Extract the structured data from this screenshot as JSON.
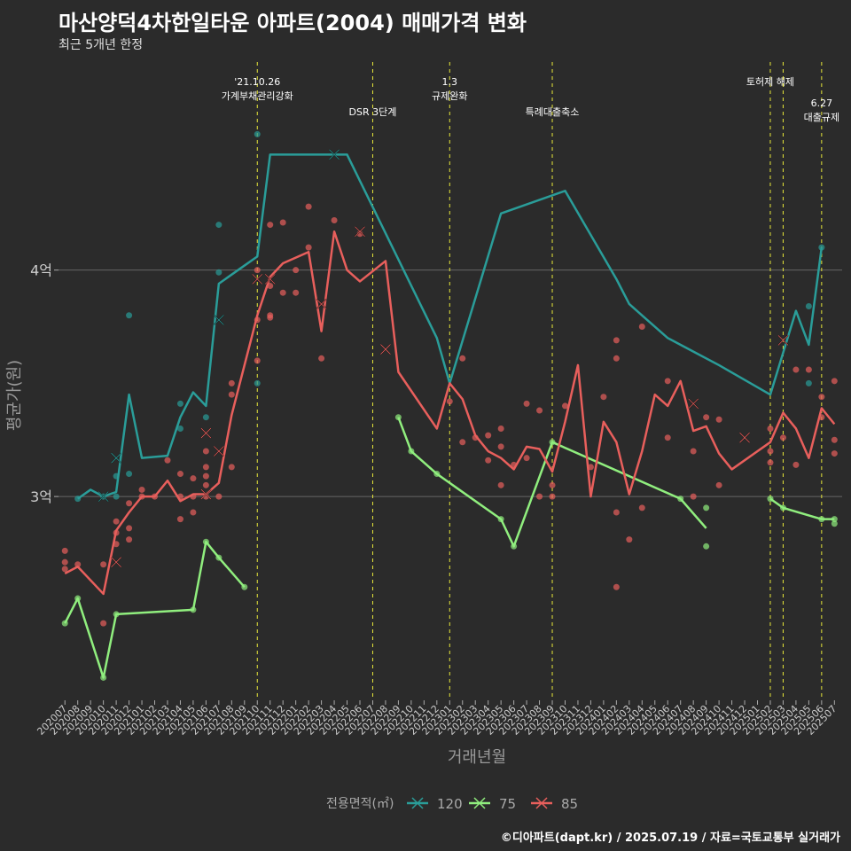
{
  "title": "마산양덕4차한일타운 아파트(2004) 매매가격 변화",
  "subtitle": "최근 5개년 한정",
  "caption": "©디아파트(dapt.kr) / 2025.07.19 / 자료=국토교통부 실거래가",
  "chart_data": {
    "type": "line",
    "xlabel": "거래년월",
    "ylabel": "평균가(원)",
    "ylim": [
      2.1,
      4.95
    ],
    "yticks": [
      {
        "value": 3,
        "label": "3억"
      },
      {
        "value": 4,
        "label": "4억"
      }
    ],
    "categories": [
      "202007",
      "202008",
      "202009",
      "202010",
      "202011",
      "202012",
      "202101",
      "202102",
      "202103",
      "202104",
      "202105",
      "202106",
      "202107",
      "202108",
      "202109",
      "202110",
      "202111",
      "202112",
      "202201",
      "202202",
      "202203",
      "202204",
      "202205",
      "202206",
      "202207",
      "202208",
      "202209",
      "202210",
      "202211",
      "202212",
      "202301",
      "202302",
      "202303",
      "202304",
      "202305",
      "202306",
      "202307",
      "202308",
      "202309",
      "202310",
      "202311",
      "202312",
      "202401",
      "202402",
      "202403",
      "202404",
      "202405",
      "202406",
      "202407",
      "202408",
      "202409",
      "202410",
      "202411",
      "202412",
      "202501",
      "202502",
      "202503",
      "202504",
      "202505",
      "202506",
      "202507"
    ],
    "legend": {
      "title": "전용면적(㎡)",
      "position": "bottom"
    },
    "grid": true,
    "events": [
      {
        "x": "202110",
        "labels": [
          "'21.10.26",
          "가계부채관리강화"
        ],
        "row": 0
      },
      {
        "x": "202207",
        "labels": [
          "DSR 3단계"
        ],
        "row": 1
      },
      {
        "x": "202301",
        "labels": [
          "1.3",
          "규제완화"
        ],
        "row": 0
      },
      {
        "x": "202309",
        "labels": [
          "특례대출축소"
        ],
        "row": 1
      },
      {
        "x": "202502",
        "labels": [
          "토허제 해제"
        ],
        "row": 0
      },
      {
        "x": "202503",
        "labels": [],
        "row": 0
      },
      {
        "x": "202506",
        "labels": [
          "6.27",
          "대출규제"
        ],
        "row": 0.7
      }
    ],
    "series": [
      {
        "name": "120",
        "color": "#2a9d99",
        "line": [
          [
            "202008",
            2.99
          ],
          [
            "202009",
            3.03
          ],
          [
            "202010",
            3.0
          ],
          [
            "202011",
            3.02
          ],
          [
            "202012",
            3.45
          ],
          [
            "202101",
            3.17
          ],
          [
            "202103",
            3.18
          ],
          [
            "202104",
            3.35
          ],
          [
            "202105",
            3.46
          ],
          [
            "202106",
            3.4
          ],
          [
            "202107",
            3.94
          ],
          [
            "202109",
            4.02
          ],
          [
            "202110",
            4.06
          ],
          [
            "202111",
            4.51
          ],
          [
            "202205",
            4.51
          ],
          [
            "202301",
            3.5
          ],
          [
            "202212",
            3.7
          ],
          [
            "202305",
            4.25
          ],
          [
            "202310",
            4.35
          ],
          [
            "202402",
            3.96
          ],
          [
            "202403",
            3.85
          ],
          [
            "202404",
            3.8
          ],
          [
            "202406",
            3.7
          ],
          [
            "202408",
            3.64
          ],
          [
            "202410",
            3.58
          ],
          [
            "202502",
            3.45
          ],
          [
            "202504",
            3.82
          ],
          [
            "202505",
            3.67
          ],
          [
            "202506",
            4.1
          ]
        ],
        "points": [
          [
            "202008",
            2.99
          ],
          [
            "202010",
            3.0
          ],
          [
            "202011",
            3.0
          ],
          [
            "202011",
            3.09
          ],
          [
            "202012",
            3.8
          ],
          [
            "202012",
            3.1
          ],
          [
            "202104",
            3.3
          ],
          [
            "202104",
            3.41
          ],
          [
            "202106",
            3.35
          ],
          [
            "202107",
            4.2
          ],
          [
            "202107",
            3.99
          ],
          [
            "202110",
            4.6
          ],
          [
            "202110",
            3.5
          ],
          [
            "202505",
            3.5
          ],
          [
            "202505",
            3.84
          ],
          [
            "202506",
            4.1
          ]
        ],
        "crosses": [
          [
            "202011",
            3.17
          ],
          [
            "202010",
            3.0
          ],
          [
            "202107",
            3.78
          ],
          [
            "202204",
            4.51
          ]
        ]
      },
      {
        "name": "75",
        "color": "#90ee7e",
        "line": [
          [
            "202007",
            2.44
          ],
          [
            "202008",
            2.55
          ],
          [
            "202010",
            2.2
          ],
          [
            "202011",
            2.48
          ],
          [
            "202105",
            2.5
          ],
          [
            "202106",
            2.8
          ],
          [
            "202107",
            2.73
          ],
          [
            "202109",
            2.6
          ]
        ],
        "line2": [
          [
            "202209",
            3.35
          ],
          [
            "202210",
            3.2
          ],
          [
            "202212",
            3.1
          ],
          [
            "202305",
            2.9
          ],
          [
            "202306",
            2.78
          ],
          [
            "202309",
            3.24
          ],
          [
            "202407",
            2.99
          ],
          [
            "202409",
            2.86
          ]
        ],
        "line3": [
          [
            "202502",
            2.99
          ],
          [
            "202503",
            2.95
          ],
          [
            "202506",
            2.9
          ],
          [
            "202507",
            2.9
          ]
        ],
        "points": [
          [
            "202007",
            2.44
          ],
          [
            "202008",
            2.55
          ],
          [
            "202010",
            2.2
          ],
          [
            "202011",
            2.48
          ],
          [
            "202105",
            2.5
          ],
          [
            "202106",
            2.8
          ],
          [
            "202107",
            2.73
          ],
          [
            "202109",
            2.6
          ],
          [
            "202209",
            3.35
          ],
          [
            "202210",
            3.2
          ],
          [
            "202212",
            3.1
          ],
          [
            "202305",
            2.9
          ],
          [
            "202306",
            2.78
          ],
          [
            "202309",
            3.24
          ],
          [
            "202407",
            2.99
          ],
          [
            "202409",
            2.95
          ],
          [
            "202409",
            2.78
          ],
          [
            "202502",
            2.99
          ],
          [
            "202503",
            2.95
          ],
          [
            "202506",
            2.9
          ],
          [
            "202507",
            2.9
          ],
          [
            "202507",
            2.88
          ]
        ],
        "crosses": []
      },
      {
        "name": "85",
        "color": "#e85f5c",
        "line": [
          [
            "202007",
            2.66
          ],
          [
            "202008",
            2.69
          ],
          [
            "202010",
            2.57
          ],
          [
            "202011",
            2.85
          ],
          [
            "202012",
            2.93
          ],
          [
            "202101",
            3.0
          ],
          [
            "202102",
            3.0
          ],
          [
            "202103",
            3.07
          ],
          [
            "202104",
            2.98
          ],
          [
            "202105",
            3.01
          ],
          [
            "202106",
            3.01
          ],
          [
            "202107",
            3.06
          ],
          [
            "202108",
            3.36
          ],
          [
            "202110",
            3.8
          ],
          [
            "202111",
            3.97
          ],
          [
            "202112",
            4.03
          ],
          [
            "202202",
            4.08
          ],
          [
            "202203",
            3.73
          ],
          [
            "202204",
            4.17
          ],
          [
            "202205",
            4.0
          ],
          [
            "202206",
            3.95
          ],
          [
            "202208",
            4.04
          ],
          [
            "202209",
            3.55
          ],
          [
            "202212",
            3.3
          ],
          [
            "202301",
            3.5
          ],
          [
            "202302",
            3.43
          ],
          [
            "202303",
            3.27
          ],
          [
            "202304",
            3.2
          ],
          [
            "202305",
            3.17
          ],
          [
            "202306",
            3.12
          ],
          [
            "202307",
            3.22
          ],
          [
            "202308",
            3.21
          ],
          [
            "202309",
            3.11
          ],
          [
            "202310",
            3.33
          ],
          [
            "202311",
            3.58
          ],
          [
            "202312",
            3.0
          ],
          [
            "202401",
            3.33
          ],
          [
            "202402",
            3.24
          ],
          [
            "202403",
            3.01
          ],
          [
            "202404",
            3.2
          ],
          [
            "202405",
            3.45
          ],
          [
            "202406",
            3.4
          ],
          [
            "202407",
            3.51
          ],
          [
            "202408",
            3.29
          ],
          [
            "202409",
            3.31
          ],
          [
            "202410",
            3.19
          ],
          [
            "202411",
            3.12
          ],
          [
            "202502",
            3.24
          ],
          [
            "202503",
            3.37
          ],
          [
            "202504",
            3.3
          ],
          [
            "202505",
            3.17
          ],
          [
            "202506",
            3.39
          ],
          [
            "202507",
            3.32
          ]
        ],
        "points": [
          [
            "202007",
            2.76
          ],
          [
            "202007",
            2.71
          ],
          [
            "202007",
            2.68
          ],
          [
            "202008",
            2.7
          ],
          [
            "202010",
            2.7
          ],
          [
            "202010",
            2.44
          ],
          [
            "202011",
            2.89
          ],
          [
            "202011",
            2.84
          ],
          [
            "202011",
            2.79
          ],
          [
            "202012",
            2.86
          ],
          [
            "202012",
            2.81
          ],
          [
            "202012",
            2.97
          ],
          [
            "202101",
            3.0
          ],
          [
            "202101",
            3.03
          ],
          [
            "202102",
            3.0
          ],
          [
            "202103",
            3.16
          ],
          [
            "202104",
            2.9
          ],
          [
            "202104",
            3.0
          ],
          [
            "202104",
            3.1
          ],
          [
            "202105",
            3.08
          ],
          [
            "202105",
            2.93
          ],
          [
            "202105",
            3.0
          ],
          [
            "202106",
            3.13
          ],
          [
            "202106",
            3.09
          ],
          [
            "202106",
            3.05
          ],
          [
            "202106",
            3.2
          ],
          [
            "202106",
            3.0
          ],
          [
            "202107",
            3.0
          ],
          [
            "202108",
            3.5
          ],
          [
            "202108",
            3.45
          ],
          [
            "202108",
            3.13
          ],
          [
            "202110",
            3.6
          ],
          [
            "202110",
            3.78
          ],
          [
            "202110",
            4.0
          ],
          [
            "202111",
            4.2
          ],
          [
            "202111",
            3.8
          ],
          [
            "202111",
            3.79
          ],
          [
            "202111",
            3.93
          ],
          [
            "202112",
            4.21
          ],
          [
            "202112",
            3.9
          ],
          [
            "202201",
            4.0
          ],
          [
            "202201",
            3.9
          ],
          [
            "202202",
            4.28
          ],
          [
            "202202",
            4.1
          ],
          [
            "202203",
            3.61
          ],
          [
            "202204",
            4.22
          ],
          [
            "202206",
            4.16
          ],
          [
            "202301",
            3.42
          ],
          [
            "202302",
            3.24
          ],
          [
            "202302",
            3.61
          ],
          [
            "202303",
            3.26
          ],
          [
            "202304",
            3.16
          ],
          [
            "202304",
            3.27
          ],
          [
            "202305",
            3.05
          ],
          [
            "202305",
            3.3
          ],
          [
            "202305",
            3.22
          ],
          [
            "202306",
            3.14
          ],
          [
            "202307",
            3.41
          ],
          [
            "202307",
            3.17
          ],
          [
            "202308",
            3.38
          ],
          [
            "202308",
            3.0
          ],
          [
            "202309",
            3.05
          ],
          [
            "202309",
            3.0
          ],
          [
            "202310",
            3.4
          ],
          [
            "202312",
            3.13
          ],
          [
            "202401",
            3.44
          ],
          [
            "202402",
            3.69
          ],
          [
            "202402",
            3.61
          ],
          [
            "202402",
            2.93
          ],
          [
            "202402",
            2.6
          ],
          [
            "202403",
            2.81
          ],
          [
            "202404",
            2.95
          ],
          [
            "202404",
            3.75
          ],
          [
            "202406",
            3.51
          ],
          [
            "202406",
            3.26
          ],
          [
            "202408",
            3.2
          ],
          [
            "202408",
            3.0
          ],
          [
            "202409",
            3.35
          ],
          [
            "202410",
            3.34
          ],
          [
            "202410",
            3.05
          ],
          [
            "202502",
            3.3
          ],
          [
            "202502",
            3.15
          ],
          [
            "202502",
            3.2
          ],
          [
            "202503",
            3.26
          ],
          [
            "202504",
            3.56
          ],
          [
            "202504",
            3.14
          ],
          [
            "202505",
            3.56
          ],
          [
            "202506",
            3.44
          ],
          [
            "202506",
            3.35
          ],
          [
            "202507",
            3.51
          ],
          [
            "202507",
            3.25
          ],
          [
            "202507",
            3.19
          ]
        ],
        "crosses": [
          [
            "202011",
            2.71
          ],
          [
            "202106",
            3.28
          ],
          [
            "202106",
            3.01
          ],
          [
            "202107",
            3.2
          ],
          [
            "202110",
            3.96
          ],
          [
            "202111",
            3.96
          ],
          [
            "202203",
            3.85
          ],
          [
            "202206",
            4.17
          ],
          [
            "202208",
            3.65
          ],
          [
            "202408",
            3.41
          ],
          [
            "202412",
            3.26
          ],
          [
            "202503",
            3.69
          ]
        ]
      }
    ]
  }
}
